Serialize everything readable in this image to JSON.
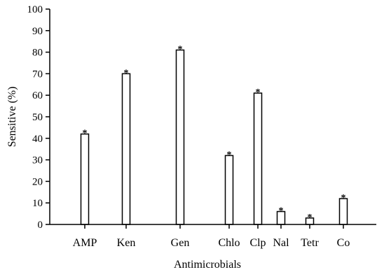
{
  "chart_data": {
    "type": "bar",
    "xlabel": "Antimicrobials",
    "ylabel": "Sensitive (%)",
    "ylim": [
      0,
      100
    ],
    "yticks": [
      0,
      10,
      20,
      30,
      40,
      50,
      60,
      70,
      80,
      90,
      100
    ],
    "categories": [
      "AMP",
      "Ken",
      "Gen",
      "Chlo",
      "Clp",
      "Nal",
      "Tetr",
      "Co"
    ],
    "values": [
      42,
      70,
      81,
      32,
      61,
      6,
      3,
      12
    ],
    "data_labels": [
      "*",
      "*",
      "*",
      "*",
      "*",
      "*",
      "*",
      "*"
    ],
    "grid": false,
    "legend": "none",
    "bar_fill": "#ffffff",
    "bar_stroke": "#000000"
  }
}
